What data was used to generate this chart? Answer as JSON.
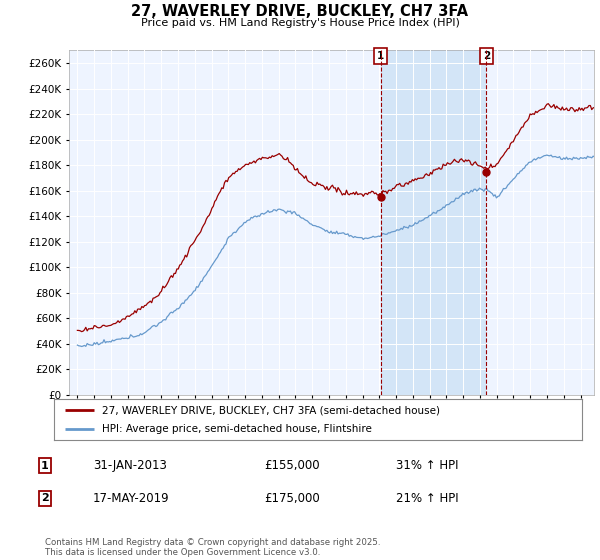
{
  "title": "27, WAVERLEY DRIVE, BUCKLEY, CH7 3FA",
  "subtitle": "Price paid vs. HM Land Registry's House Price Index (HPI)",
  "legend_line1": "27, WAVERLEY DRIVE, BUCKLEY, CH7 3FA (semi-detached house)",
  "legend_line2": "HPI: Average price, semi-detached house, Flintshire",
  "annotation1_label": "1",
  "annotation1_date": "31-JAN-2013",
  "annotation1_price": "£155,000",
  "annotation1_hpi": "31% ↑ HPI",
  "annotation2_label": "2",
  "annotation2_date": "17-MAY-2019",
  "annotation2_price": "£175,000",
  "annotation2_hpi": "21% ↑ HPI",
  "footer": "Contains HM Land Registry data © Crown copyright and database right 2025.\nThis data is licensed under the Open Government Licence v3.0.",
  "red_color": "#990000",
  "blue_color": "#6699cc",
  "chart_bg": "#eef4ff",
  "shade_color": "#d0e4f7",
  "vline1_x": 2013.08,
  "vline2_x": 2019.38,
  "ylim": [
    0,
    270000
  ],
  "xlim": [
    1994.5,
    2025.8
  ],
  "yticks": [
    0,
    20000,
    40000,
    60000,
    80000,
    100000,
    120000,
    140000,
    160000,
    180000,
    200000,
    220000,
    240000,
    260000
  ],
  "xticks": [
    1995,
    1996,
    1997,
    1998,
    1999,
    2000,
    2001,
    2002,
    2003,
    2004,
    2005,
    2006,
    2007,
    2008,
    2009,
    2010,
    2011,
    2012,
    2013,
    2014,
    2015,
    2016,
    2017,
    2018,
    2019,
    2020,
    2021,
    2022,
    2023,
    2024,
    2025
  ]
}
